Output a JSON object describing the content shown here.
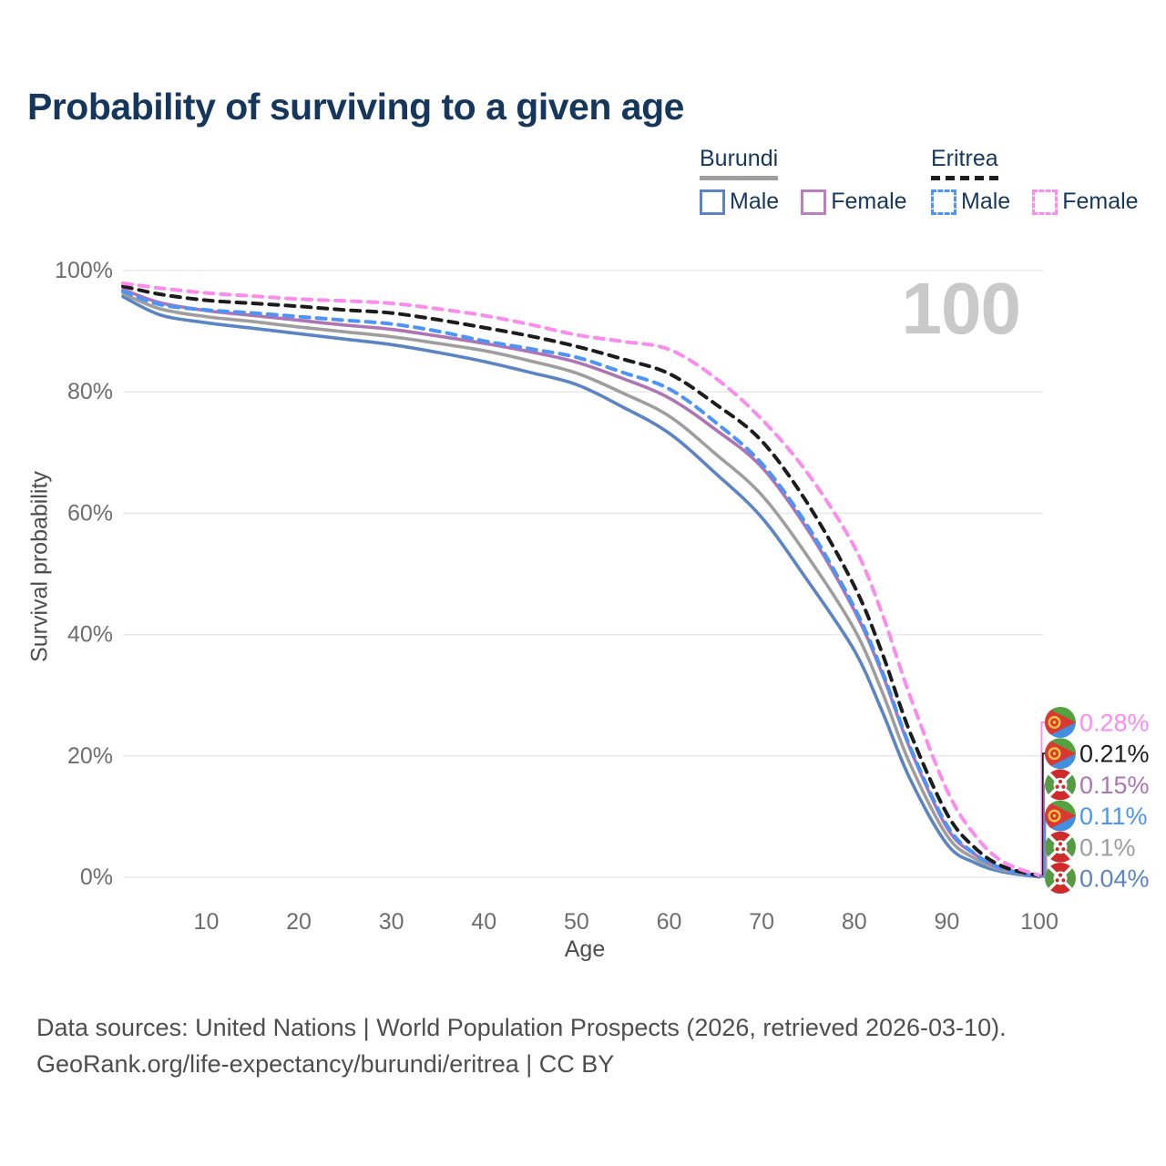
{
  "title": "Probability of surviving to a given age",
  "watermark": "100",
  "legend": {
    "groups": [
      {
        "name": "Burundi",
        "style": "solid",
        "underline_color": "#9e9e9e",
        "items": [
          {
            "label": "Male",
            "color": "#5b84c4",
            "dashed": false
          },
          {
            "label": "Female",
            "color": "#bb7ec0",
            "dashed": false
          }
        ]
      },
      {
        "name": "Eritrea",
        "style": "dashed",
        "underline_color": "#1c1c1c",
        "items": [
          {
            "label": "Male",
            "color": "#4d94f7",
            "dashed": true
          },
          {
            "label": "Female",
            "color": "#fc8bf0",
            "dashed": true
          }
        ]
      }
    ]
  },
  "chart_data": {
    "type": "line",
    "title": "Probability of surviving to a given age",
    "xlabel": "Age",
    "ylabel": "Survival probability",
    "xlim": [
      1,
      100
    ],
    "ylim": [
      0,
      100
    ],
    "grid": true,
    "x_ticks": [
      {
        "v": 10,
        "label": "10"
      },
      {
        "v": 20,
        "label": "20"
      },
      {
        "v": 30,
        "label": "30"
      },
      {
        "v": 40,
        "label": "40"
      },
      {
        "v": 50,
        "label": "50"
      },
      {
        "v": 60,
        "label": "60"
      },
      {
        "v": 70,
        "label": "70"
      },
      {
        "v": 80,
        "label": "80"
      },
      {
        "v": 90,
        "label": "90"
      },
      {
        "v": 100,
        "label": "100"
      }
    ],
    "y_ticks": [
      {
        "v": 0,
        "label": "0%"
      },
      {
        "v": 20,
        "label": "20%"
      },
      {
        "v": 40,
        "label": "40%"
      },
      {
        "v": 60,
        "label": "60%"
      },
      {
        "v": 80,
        "label": "80%"
      },
      {
        "v": 100,
        "label": "100%"
      }
    ],
    "x": [
      1,
      5,
      10,
      15,
      20,
      25,
      30,
      35,
      40,
      45,
      50,
      55,
      60,
      65,
      70,
      75,
      80,
      83,
      86,
      90,
      93,
      96,
      100
    ],
    "series": [
      {
        "name": "Eritrea Female",
        "color": "#fc8bf0",
        "dashed": true,
        "flag": "eritrea",
        "end_label": "0.28%",
        "values": [
          97.9,
          97.1,
          96.3,
          95.8,
          95.3,
          95.0,
          94.6,
          93.7,
          92.6,
          91.1,
          89.4,
          88.3,
          87.0,
          82.3,
          75.5,
          66.5,
          54.5,
          43.5,
          30.0,
          14.4,
          7.0,
          2.6,
          0.28
        ]
      },
      {
        "name": "Eritrea Both sexes",
        "color": "#1c1c1c",
        "dashed": true,
        "flag": "eritrea",
        "end_label": "0.21%",
        "values": [
          97.4,
          96.1,
          95.1,
          94.6,
          94.1,
          93.5,
          93.0,
          91.9,
          90.6,
          89.2,
          87.5,
          85.4,
          83.0,
          78.0,
          71.9,
          61.5,
          48.0,
          37.0,
          24.0,
          10.5,
          4.9,
          1.8,
          0.21
        ]
      },
      {
        "name": "Burundi Female",
        "color": "#af74b3",
        "dashed": false,
        "flag": "burundi",
        "end_label": "0.15%",
        "values": [
          96.9,
          94.7,
          93.4,
          92.6,
          91.8,
          91.0,
          90.3,
          89.2,
          88.0,
          86.6,
          84.9,
          82.2,
          79.0,
          73.8,
          67.6,
          57.2,
          44.0,
          33.6,
          21.3,
          8.2,
          3.8,
          1.5,
          0.15
        ]
      },
      {
        "name": "Eritrea Male",
        "color": "#4d94f7",
        "dashed": true,
        "flag": "eritrea",
        "end_label": "0.11%",
        "values": [
          96.6,
          94.4,
          93.5,
          93.0,
          92.4,
          91.8,
          91.2,
          90.0,
          88.4,
          87.1,
          85.7,
          83.2,
          80.5,
          75.0,
          68.2,
          57.8,
          44.5,
          34.0,
          21.6,
          8.6,
          3.9,
          1.4,
          0.11
        ]
      },
      {
        "name": "Burundi Both sexes",
        "color": "#9e9e9e",
        "dashed": false,
        "flag": "burundi",
        "end_label": "0.1%",
        "values": [
          96.2,
          93.7,
          92.4,
          91.6,
          90.7,
          89.9,
          89.1,
          88.0,
          86.8,
          85.1,
          83.1,
          79.8,
          76.0,
          69.8,
          63.0,
          52.8,
          40.9,
          30.6,
          18.8,
          6.9,
          3.1,
          1.2,
          0.1
        ]
      },
      {
        "name": "Burundi Male",
        "color": "#5b84c4",
        "dashed": false,
        "flag": "burundi",
        "end_label": "0.04%",
        "values": [
          95.7,
          92.7,
          91.4,
          90.5,
          89.6,
          88.7,
          87.8,
          86.5,
          85.0,
          83.2,
          81.2,
          77.5,
          73.2,
          66.6,
          59.3,
          48.8,
          37.4,
          27.4,
          16.3,
          5.5,
          2.4,
          0.9,
          0.04
        ]
      }
    ]
  },
  "footer": {
    "line1": "Data sources: United Nations | World Population Prospects (2026, retrieved 2026-03-10).",
    "line2": "GeoRank.org/life-expectancy/burundi/eritrea | CC BY"
  }
}
